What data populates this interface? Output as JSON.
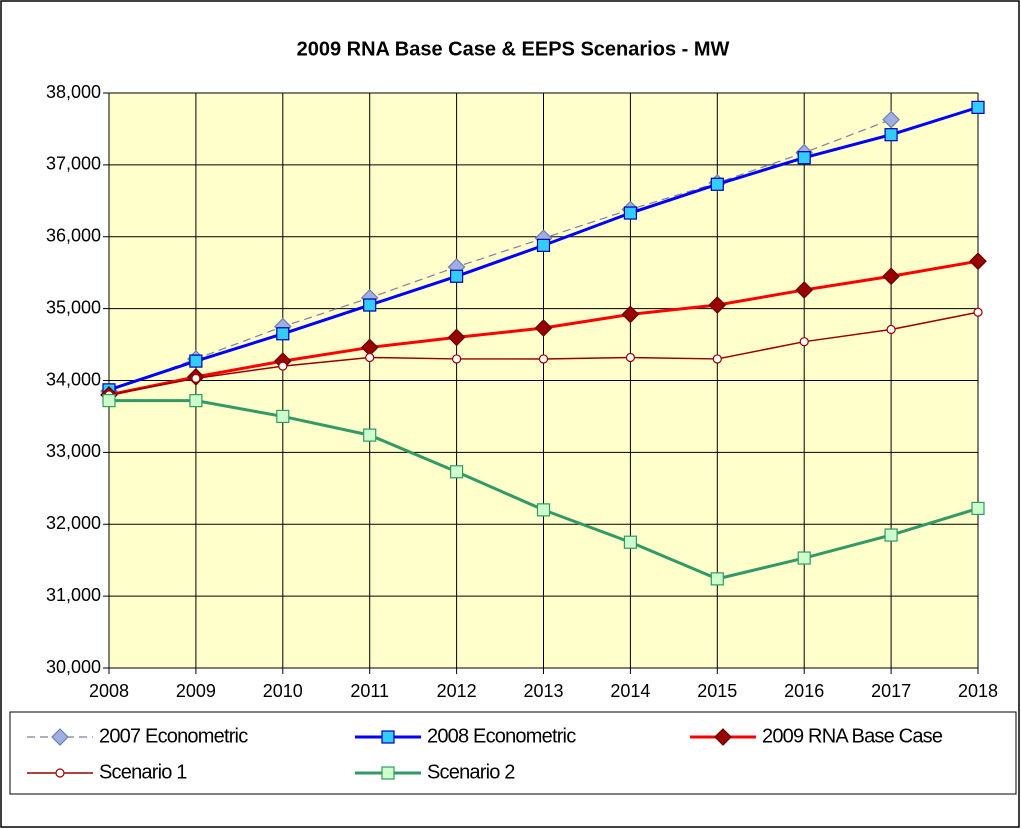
{
  "chart_data": {
    "type": "line",
    "title": "2009 RNA  Base Case & EEPS Scenarios - MW",
    "categories": [
      "2008",
      "2009",
      "2010",
      "2011",
      "2012",
      "2013",
      "2014",
      "2015",
      "2016",
      "2017",
      "2018"
    ],
    "ylim": [
      30000,
      38000
    ],
    "yticks": [
      {
        "value": 30000,
        "label": "30,000"
      },
      {
        "value": 31000,
        "label": "31,000"
      },
      {
        "value": 32000,
        "label": "32,000"
      },
      {
        "value": 33000,
        "label": "33,000"
      },
      {
        "value": 34000,
        "label": "34,000"
      },
      {
        "value": 35000,
        "label": "35,000"
      },
      {
        "value": 36000,
        "label": "36,000"
      },
      {
        "value": 37000,
        "label": "37,000"
      },
      {
        "value": 38000,
        "label": "38,000"
      }
    ],
    "grid": true,
    "background": "#ffffcc",
    "legend": "bottom",
    "series": [
      {
        "name": "2007 Econometric",
        "color": "#7f7fa0",
        "marker": "diamond",
        "marker_color": "#9eaee0",
        "marker_stroke": "#6f7fb0",
        "dash": true,
        "line_width": 1.2,
        "values": [
          33850,
          34300,
          34750,
          35150,
          35580,
          35980,
          36380,
          36750,
          37170,
          37630,
          null
        ]
      },
      {
        "name": "2008 Econometric",
        "color": "#0000ff",
        "marker": "square",
        "marker_color": "#33ccff",
        "marker_stroke": "#0000aa",
        "dash": false,
        "line_width": 3,
        "values": [
          33870,
          34270,
          34650,
          35050,
          35450,
          35880,
          36330,
          36730,
          37100,
          37420,
          37800
        ]
      },
      {
        "name": "2009 RNA Base Case",
        "color": "#ff0000",
        "marker": "diamond",
        "marker_color": "#990000",
        "marker_stroke": "#660000",
        "dash": false,
        "line_width": 3,
        "values": [
          33800,
          34050,
          34270,
          34460,
          34600,
          34730,
          34920,
          35050,
          35260,
          35450,
          35660
        ]
      },
      {
        "name": "Scenario 1",
        "color": "#990000",
        "marker": "circle",
        "marker_color": "#ffffff",
        "marker_stroke": "#990000",
        "dash": false,
        "line_width": 1.5,
        "values": [
          33800,
          34030,
          34200,
          34320,
          34300,
          34300,
          34320,
          34300,
          34540,
          34710,
          34950
        ]
      },
      {
        "name": "Scenario 2",
        "color": "#339966",
        "marker": "square",
        "marker_color": "#ccffcc",
        "marker_stroke": "#339966",
        "dash": false,
        "line_width": 3,
        "values": [
          33720,
          33720,
          33500,
          33240,
          32730,
          32200,
          31750,
          31240,
          31530,
          31850,
          32220
        ]
      }
    ]
  }
}
